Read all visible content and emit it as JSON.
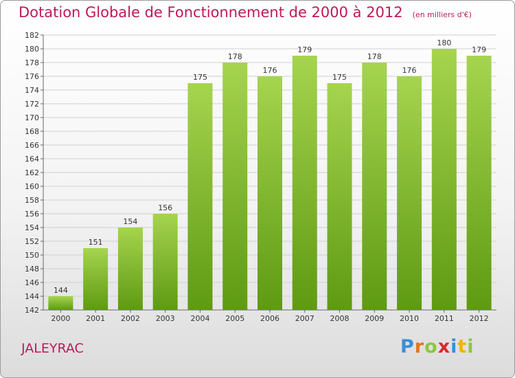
{
  "title": {
    "main": "Dotation Globale de Fonctionnement de 2000 à 2012",
    "subtitle": "(en milliers d'€)"
  },
  "commune": "JALEYRAC",
  "logo": {
    "text": "Proxiti",
    "letter_colors": [
      "#3a8fd8",
      "#e8731a",
      "#8cc63f",
      "#d9282f",
      "#3a8fd8",
      "#f0b400",
      "#8cc63f"
    ]
  },
  "colors": {
    "title": "#c0185a",
    "bar_top": "#a6d44f",
    "bar_bottom": "#5e9a12",
    "grid": "#d0d0d0"
  },
  "chart_data": {
    "type": "bar",
    "categories": [
      "2000",
      "2001",
      "2002",
      "2003",
      "2004",
      "2005",
      "2006",
      "2007",
      "2008",
      "2009",
      "2010",
      "2011",
      "2012"
    ],
    "values": [
      144,
      151,
      154,
      156,
      175,
      178,
      176,
      179,
      175,
      178,
      176,
      180,
      179
    ],
    "ylim": [
      142,
      182
    ],
    "ytick_step": 2,
    "grid": true,
    "legend": "none"
  }
}
